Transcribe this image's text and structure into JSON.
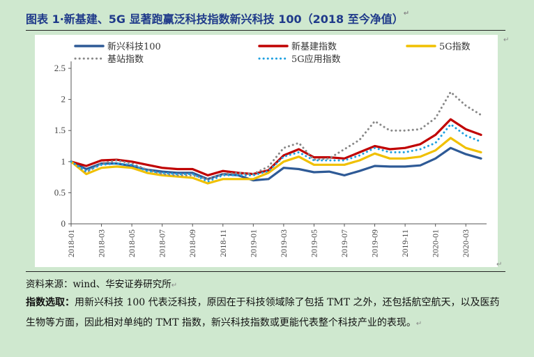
{
  "figure": {
    "title": "图表 1·新基建、5G 显著跑赢泛科技指数新兴科技 100（2018 至今净值）",
    "source": "资料来源：wind、华安证券研究所",
    "note_label": "指数选取：",
    "note_body": "用新兴科技 100 代表泛科技，原因在于科技领域除了包括 TMT 之外，还包括航空航天，以及医药生物等方面，因此相对单纯的 TMT 指数，新兴科技指数或更能代表整个科技产业的表现。",
    "para_mark": "↵"
  },
  "chart_data": {
    "type": "line",
    "title": "",
    "xlabel": "",
    "ylabel": "",
    "ylim": [
      0,
      2.5
    ],
    "yticks": [
      "0",
      "0.5",
      "1",
      "1.5",
      "2",
      "2.5"
    ],
    "xticks": [
      "2018-01",
      "2018-03",
      "2018-05",
      "2018-07",
      "2018-09",
      "2018-11",
      "2019-01",
      "2019-03",
      "2019-05",
      "2019-07",
      "2019-09",
      "2019-11",
      "2020-01",
      "2020-03"
    ],
    "grid": false,
    "legend": "top",
    "x": [
      "2018-01",
      "2018-02",
      "2018-03",
      "2018-04",
      "2018-05",
      "2018-06",
      "2018-07",
      "2018-08",
      "2018-09",
      "2018-10",
      "2018-11",
      "2018-12",
      "2019-01",
      "2019-02",
      "2019-03",
      "2019-04",
      "2019-05",
      "2019-06",
      "2019-07",
      "2019-08",
      "2019-09",
      "2019-10",
      "2019-11",
      "2019-12",
      "2020-01",
      "2020-02",
      "2020-03",
      "2020-04"
    ],
    "series": [
      {
        "name": "新兴科技100",
        "color": "#2e5a96",
        "style": "solid",
        "values": [
          1.0,
          0.88,
          0.97,
          0.97,
          0.93,
          0.87,
          0.84,
          0.82,
          0.82,
          0.72,
          0.8,
          0.78,
          0.7,
          0.72,
          0.9,
          0.88,
          0.83,
          0.84,
          0.78,
          0.85,
          0.93,
          0.92,
          0.92,
          0.94,
          1.05,
          1.22,
          1.12,
          1.05
        ]
      },
      {
        "name": "新基建指数",
        "color": "#c00000",
        "style": "solid",
        "values": [
          1.0,
          0.93,
          1.02,
          1.03,
          1.0,
          0.95,
          0.9,
          0.88,
          0.88,
          0.78,
          0.85,
          0.82,
          0.8,
          0.86,
          1.1,
          1.2,
          1.07,
          1.07,
          1.05,
          1.15,
          1.25,
          1.2,
          1.22,
          1.28,
          1.43,
          1.68,
          1.52,
          1.43
        ]
      },
      {
        "name": "5G指数",
        "color": "#f0c000",
        "style": "solid",
        "values": [
          1.0,
          0.8,
          0.9,
          0.92,
          0.9,
          0.82,
          0.78,
          0.76,
          0.74,
          0.65,
          0.72,
          0.72,
          0.72,
          0.82,
          1.0,
          1.08,
          0.95,
          0.95,
          0.95,
          1.02,
          1.13,
          1.05,
          1.05,
          1.08,
          1.18,
          1.38,
          1.22,
          1.15
        ]
      },
      {
        "name": "基站指数",
        "color": "#888888",
        "style": "dotted",
        "values": [
          1.0,
          0.83,
          0.97,
          1.02,
          0.97,
          0.87,
          0.8,
          0.78,
          0.78,
          0.72,
          0.8,
          0.82,
          0.8,
          0.92,
          1.22,
          1.3,
          1.03,
          1.05,
          1.2,
          1.35,
          1.65,
          1.5,
          1.5,
          1.52,
          1.7,
          2.12,
          1.9,
          1.75
        ]
      },
      {
        "name": "5G应用指数",
        "color": "#1ea0e0",
        "style": "dotted",
        "values": [
          1.0,
          0.85,
          0.95,
          0.97,
          0.95,
          0.85,
          0.82,
          0.8,
          0.8,
          0.68,
          0.78,
          0.78,
          0.78,
          0.85,
          1.08,
          1.15,
          1.02,
          1.02,
          1.02,
          1.1,
          1.22,
          1.15,
          1.15,
          1.2,
          1.3,
          1.6,
          1.42,
          1.32
        ]
      }
    ]
  }
}
